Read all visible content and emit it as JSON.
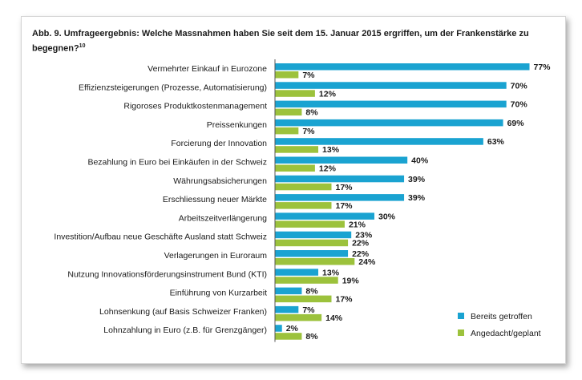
{
  "title": "Abb. 9. Umfrageergebnis: Welche Massnahmen haben Sie seit dem 15. Januar 2015 ergriffen, um der Frankenstärke zu begegnen?",
  "footnote": "10",
  "colors": {
    "bereits": "#1aa3d1",
    "angedacht": "#9cc23c"
  },
  "chart_data": {
    "type": "bar",
    "orientation": "horizontal",
    "xlim": [
      0,
      77
    ],
    "grid": false,
    "legend_position": "bottom-right",
    "value_suffix": "%",
    "categories": [
      "Vermehrter Einkauf in Eurozone",
      "Effizienzsteigerungen (Prozesse, Automatisierung)",
      "Rigoroses Produktkostenmanagement",
      "Preissenkungen",
      "Forcierung der Innovation",
      "Bezahlung in Euro bei Einkäufen in der Schweiz",
      "Währungsabsicherungen",
      "Erschliessung neuer Märkte",
      "Arbeitszeitverlängerung",
      "Investition/Aufbau neue Geschäfte Ausland statt Schweiz",
      "Verlagerungen in Euroraum",
      "Nutzung Innovationsförderungsinstrument Bund (KTI)",
      "Einführung von Kurzarbeit",
      "Lohnsenkung (auf Basis Schweizer Franken)",
      "Lohnzahlung in Euro (z.B. für Grenzgänger)"
    ],
    "series": [
      {
        "name": "Bereits getroffen",
        "values": [
          77,
          70,
          70,
          69,
          63,
          40,
          39,
          39,
          30,
          23,
          22,
          13,
          8,
          7,
          2
        ]
      },
      {
        "name": "Angedacht/geplant",
        "values": [
          7,
          12,
          8,
          7,
          13,
          12,
          17,
          17,
          21,
          22,
          24,
          19,
          17,
          14,
          8
        ]
      }
    ]
  }
}
